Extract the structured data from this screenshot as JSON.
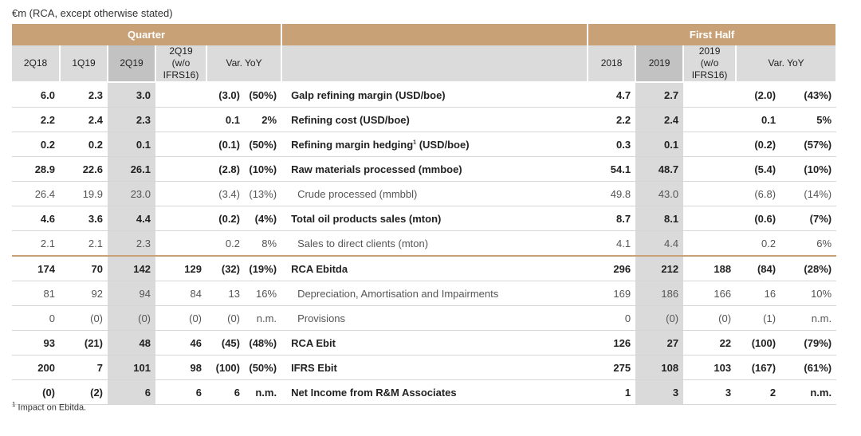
{
  "caption": "€m (RCA, except otherwise stated)",
  "header": {
    "quarter": "Quarter",
    "first_half": "First Half",
    "q_cols": [
      "2Q18",
      "1Q19",
      "2Q19",
      "2Q19 (w/o IFRS16)",
      "Var. YoY"
    ],
    "h_cols": [
      "2018",
      "2019",
      "2019 (w/o IFRS16)",
      "Var. YoY"
    ]
  },
  "rows": [
    {
      "label": "Galp refining margin (USD/boe)",
      "q": [
        "6.0",
        "2.3",
        "3.0",
        "",
        "(3.0)",
        "(50%)"
      ],
      "h": [
        "4.7",
        "2.7",
        "",
        "(2.0)",
        "(43%)"
      ]
    },
    {
      "label": "Refining cost (USD/boe)",
      "q": [
        "2.2",
        "2.4",
        "2.3",
        "",
        "0.1",
        "2%"
      ],
      "h": [
        "2.2",
        "2.4",
        "",
        "0.1",
        "5%"
      ]
    },
    {
      "label": "Refining margin hedging",
      "sup": "1",
      "label_suffix": " (USD/boe)",
      "q": [
        "0.2",
        "0.2",
        "0.1",
        "",
        "(0.1)",
        "(50%)"
      ],
      "h": [
        "0.3",
        "0.1",
        "",
        "(0.2)",
        "(57%)"
      ]
    },
    {
      "label": "Raw materials processed (mmboe)",
      "q": [
        "28.9",
        "22.6",
        "26.1",
        "",
        "(2.8)",
        "(10%)"
      ],
      "h": [
        "54.1",
        "48.7",
        "",
        "(5.4)",
        "(10%)"
      ]
    },
    {
      "label": "Crude processed (mmbbl)",
      "q": [
        "26.4",
        "19.9",
        "23.0",
        "",
        "(3.4)",
        "(13%)"
      ],
      "h": [
        "49.8",
        "43.0",
        "",
        "(6.8)",
        "(14%)"
      ]
    },
    {
      "label": "Total oil products sales (mton)",
      "q": [
        "4.6",
        "3.6",
        "4.4",
        "",
        "(0.2)",
        "(4%)"
      ],
      "h": [
        "8.7",
        "8.1",
        "",
        "(0.6)",
        "(7%)"
      ]
    },
    {
      "label": "Sales to direct clients (mton)",
      "q": [
        "2.1",
        "2.1",
        "2.3",
        "",
        "0.2",
        "8%"
      ],
      "h": [
        "4.1",
        "4.4",
        "",
        "0.2",
        "6%"
      ]
    },
    {
      "label": "RCA Ebitda",
      "q": [
        "174",
        "70",
        "142",
        "129",
        "(32)",
        "(19%)"
      ],
      "h": [
        "296",
        "212",
        "188",
        "(84)",
        "(28%)"
      ]
    },
    {
      "label": "Depreciation, Amortisation and Impairments",
      "q": [
        "81",
        "92",
        "94",
        "84",
        "13",
        "16%"
      ],
      "h": [
        "169",
        "186",
        "166",
        "16",
        "10%"
      ]
    },
    {
      "label": "Provisions",
      "q": [
        "0",
        "(0)",
        "(0)",
        "(0)",
        "(0)",
        "n.m."
      ],
      "h": [
        "0",
        "(0)",
        "(0)",
        "(1)",
        "n.m."
      ]
    },
    {
      "label": "RCA Ebit",
      "q": [
        "93",
        "(21)",
        "48",
        "46",
        "(45)",
        "(48%)"
      ],
      "h": [
        "126",
        "27",
        "22",
        "(100)",
        "(79%)"
      ]
    },
    {
      "label": "IFRS Ebit",
      "q": [
        "200",
        "7",
        "101",
        "98",
        "(100)",
        "(50%)"
      ],
      "h": [
        "275",
        "108",
        "103",
        "(167)",
        "(61%)"
      ]
    },
    {
      "label": "Net Income from R&M Associates",
      "q": [
        "(0)",
        "(2)",
        "6",
        "6",
        "6",
        "n.m."
      ],
      "h": [
        "1",
        "3",
        "3",
        "2",
        "n.m."
      ]
    }
  ],
  "footnote_sup": "1",
  "footnote": " Impact on Ebitda."
}
